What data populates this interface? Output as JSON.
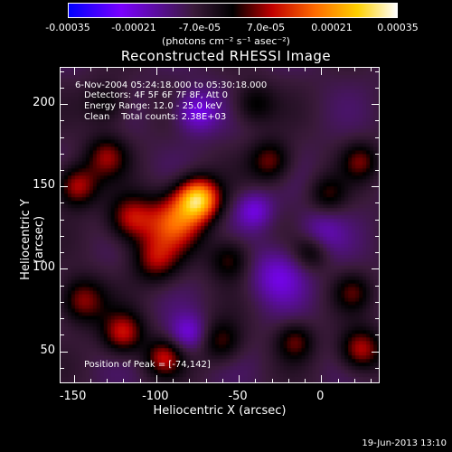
{
  "colorbar": {
    "ticks": [
      "-0.00035",
      "-0.00021",
      "-7.0e-05",
      "7.0e-05",
      "0.00021",
      "0.00035"
    ],
    "units": "(photons cm⁻² s⁻¹ asec⁻²)"
  },
  "plot": {
    "title": "Reconstructed RHESSI Image",
    "info_lines": [
      "6-Nov-2004 05:24:18.000 to 05:30:18.000",
      "Detectors: 4F 5F 6F 7F 8F, Att 0",
      "Energy Range: 12.0 - 25.0 keV",
      "Clean    Total counts: 2.38E+03"
    ],
    "peak_text": "Position of Peak = [-74,142]",
    "xlabel": "Heliocentric X (arcsec)",
    "ylabel": "Heliocentric Y (arcsec)",
    "xticks": [
      "-150",
      "-100",
      "-50",
      "0"
    ],
    "yticks": [
      "200",
      "150",
      "100",
      "50"
    ]
  },
  "datestamp": "19-Jun-2013 13:10",
  "chart_data": {
    "type": "heatmap",
    "title": "Reconstructed RHESSI Image",
    "xlabel": "Heliocentric X (arcsec)",
    "ylabel": "Heliocentric Y (arcsec)",
    "xlim": [
      -158,
      36
    ],
    "ylim": [
      30,
      222
    ],
    "clim": [
      -0.00035,
      0.00035
    ],
    "colormap": [
      "#0000ff",
      "#7a00ff",
      "#3a1a3a",
      "#000000",
      "#c00000",
      "#ff6a00",
      "#ffd000",
      "#ffffff"
    ],
    "peak": [
      -74,
      142
    ],
    "blobs": [
      {
        "x": -74,
        "y": 142,
        "amp": 0.00034,
        "w": 9
      },
      {
        "x": -88,
        "y": 128,
        "amp": 0.00022,
        "w": 12
      },
      {
        "x": -115,
        "y": 130,
        "amp": 0.00018,
        "w": 10
      },
      {
        "x": -148,
        "y": 150,
        "amp": 0.00018,
        "w": 9
      },
      {
        "x": -130,
        "y": 168,
        "amp": 0.00014,
        "w": 9
      },
      {
        "x": -100,
        "y": 105,
        "amp": 0.00015,
        "w": 10
      },
      {
        "x": -55,
        "y": 105,
        "amp": 0.00012,
        "w": 9
      },
      {
        "x": -145,
        "y": 80,
        "amp": 0.00016,
        "w": 10
      },
      {
        "x": -120,
        "y": 60,
        "amp": 0.00018,
        "w": 9
      },
      {
        "x": -95,
        "y": 45,
        "amp": 0.00016,
        "w": 8
      },
      {
        "x": -60,
        "y": 55,
        "amp": 0.00012,
        "w": 9
      },
      {
        "x": -30,
        "y": 165,
        "amp": 0.00014,
        "w": 9
      },
      {
        "x": 5,
        "y": 145,
        "amp": 0.0001,
        "w": 8
      },
      {
        "x": 25,
        "y": 165,
        "amp": 0.00012,
        "w": 8
      },
      {
        "x": -5,
        "y": 110,
        "amp": 0.00012,
        "w": 8
      },
      {
        "x": 20,
        "y": 85,
        "amp": 0.0001,
        "w": 8
      },
      {
        "x": 25,
        "y": 50,
        "amp": 0.00018,
        "w": 9
      },
      {
        "x": -15,
        "y": 55,
        "amp": 0.00012,
        "w": 8
      },
      {
        "x": -40,
        "y": 200,
        "amp": 0.0001,
        "w": 9
      },
      {
        "x": -130,
        "y": 200,
        "amp": 0.0001,
        "w": 9
      },
      {
        "x": -75,
        "y": 195,
        "amp": -0.00014,
        "w": 9
      },
      {
        "x": -80,
        "y": 60,
        "amp": -0.00012,
        "w": 8
      },
      {
        "x": -25,
        "y": 95,
        "amp": -0.00012,
        "w": 12
      },
      {
        "x": 0,
        "y": 120,
        "amp": -0.0001,
        "w": 10
      },
      {
        "x": -40,
        "y": 135,
        "amp": -0.00012,
        "w": 8
      }
    ]
  }
}
